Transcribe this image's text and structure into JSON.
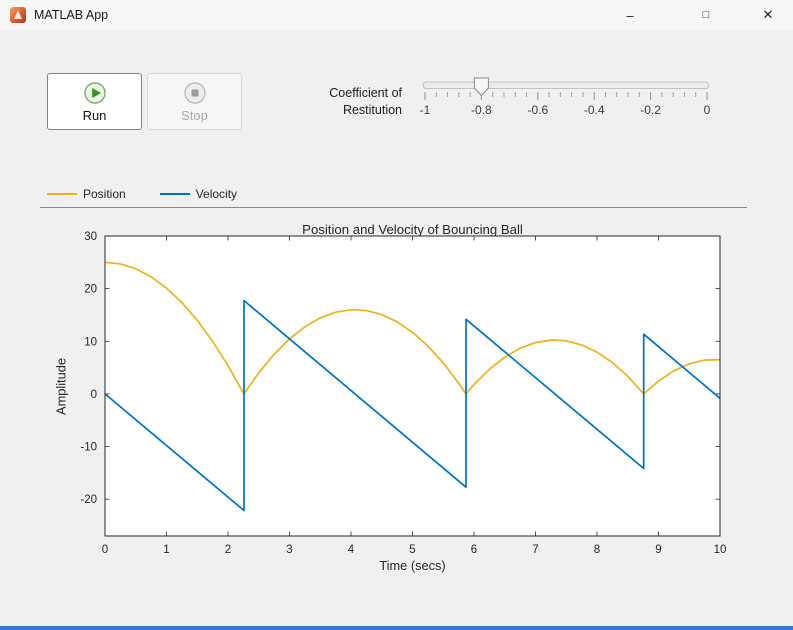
{
  "window": {
    "title": "MATLAB App",
    "controls": {
      "minimize": "–",
      "maximize": "□",
      "close": "✕"
    }
  },
  "colors": {
    "accent_strip": "#2e7bcc",
    "position": "#EDB120",
    "velocity": "#0072BD",
    "axes_foreground": "#262626"
  },
  "toolbar": {
    "run_label": "Run",
    "stop_label": "Stop",
    "stop_disabled": true
  },
  "slider": {
    "label": [
      "Coefficient of",
      "Restitution"
    ],
    "min": -1,
    "max": 0,
    "value": -0.8,
    "tick_labels": [
      "-1",
      "-0.8",
      "-0.6",
      "-0.4",
      "-0.2",
      "0"
    ],
    "minor_ticks_per_interval": 4
  },
  "legend": {
    "items": [
      {
        "label": "Position",
        "color": "#EDB120"
      },
      {
        "label": "Velocity",
        "color": "#0072BD"
      }
    ]
  },
  "chart_data": {
    "type": "line",
    "title": "Position and Velocity of Bouncing Ball",
    "xlabel": "Time (secs)",
    "ylabel": "Amplitude",
    "xlim": [
      0,
      10
    ],
    "ylim": [
      -27,
      30
    ],
    "xticks": [
      0,
      1,
      2,
      3,
      4,
      5,
      6,
      7,
      8,
      9,
      10
    ],
    "yticks": [
      -20,
      -10,
      0,
      10,
      20,
      30
    ],
    "grid": false,
    "legend_position": "above-axes",
    "bounce_times": [
      2.26,
      5.87,
      8.76
    ],
    "series": [
      {
        "name": "Position",
        "color": "#EDB120",
        "points": [
          [
            0,
            25
          ],
          [
            0.25,
            24.69
          ],
          [
            0.5,
            23.77
          ],
          [
            0.75,
            22.24
          ],
          [
            1,
            20.1
          ],
          [
            1.25,
            17.34
          ],
          [
            1.5,
            13.96
          ],
          [
            1.75,
            9.98
          ],
          [
            2,
            5.38
          ],
          [
            2.25,
            0.17
          ],
          [
            2.26,
            0
          ],
          [
            2.5,
            4.01
          ],
          [
            2.75,
            7.53
          ],
          [
            3,
            10.45
          ],
          [
            3.25,
            12.75
          ],
          [
            3.5,
            14.44
          ],
          [
            3.75,
            15.52
          ],
          [
            4,
            15.98
          ],
          [
            4.06,
            16
          ],
          [
            4.25,
            15.83
          ],
          [
            4.5,
            15.07
          ],
          [
            4.75,
            13.69
          ],
          [
            5,
            11.7
          ],
          [
            5.25,
            9.1
          ],
          [
            5.5,
            5.88
          ],
          [
            5.75,
            2.06
          ],
          [
            5.87,
            0
          ],
          [
            6,
            1.76
          ],
          [
            6.25,
            4.68
          ],
          [
            6.5,
            6.98
          ],
          [
            6.75,
            8.68
          ],
          [
            7,
            9.75
          ],
          [
            7.25,
            10.22
          ],
          [
            7.31,
            10.24
          ],
          [
            7.5,
            10.07
          ],
          [
            7.75,
            9.31
          ],
          [
            8,
            7.94
          ],
          [
            8.25,
            5.95
          ],
          [
            8.5,
            3.35
          ],
          [
            8.75,
            0.14
          ],
          [
            8.76,
            0
          ],
          [
            9,
            2.44
          ],
          [
            9.25,
            4.38
          ],
          [
            9.5,
            5.71
          ],
          [
            9.75,
            6.42
          ],
          [
            10,
            6.52
          ]
        ]
      },
      {
        "name": "Velocity",
        "color": "#0072BD",
        "points": [
          [
            0,
            0
          ],
          [
            2.26,
            -22.15
          ],
          [
            2.26,
            17.72
          ],
          [
            5.87,
            -17.72
          ],
          [
            5.87,
            14.17
          ],
          [
            8.76,
            -14.17
          ],
          [
            8.76,
            11.34
          ],
          [
            10,
            -0.83
          ]
        ]
      }
    ]
  }
}
